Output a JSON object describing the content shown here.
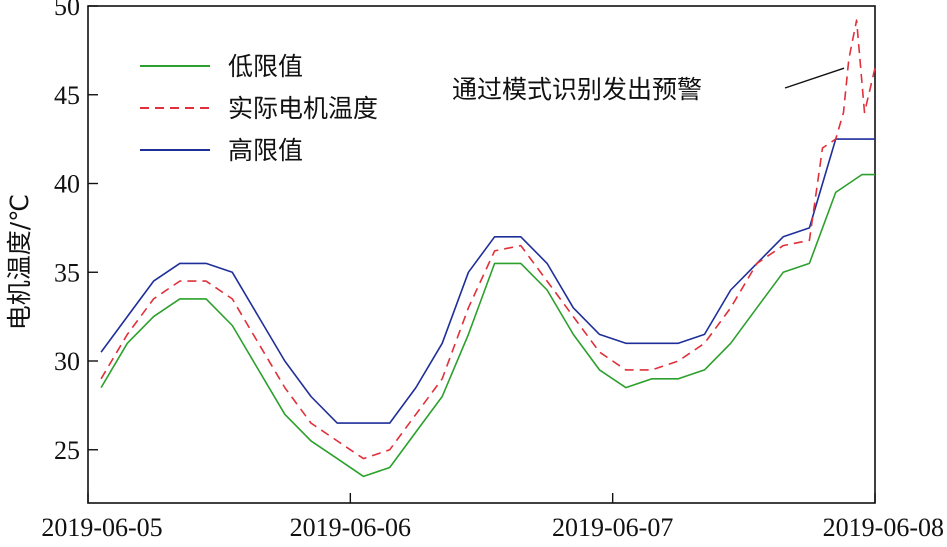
{
  "chart_data": {
    "type": "line",
    "ylabel": "电机温度/℃",
    "xlabel": "",
    "ylim": [
      22,
      50
    ],
    "xlim": [
      0,
      3
    ],
    "yticks": [
      25,
      30,
      35,
      40,
      45,
      50
    ],
    "xticks": [
      {
        "value": 0,
        "label": "2019-06-05"
      },
      {
        "value": 1,
        "label": "2019-06-06"
      },
      {
        "value": 2,
        "label": "2019-06-07"
      },
      {
        "value": 3,
        "label": "2019-06-08"
      }
    ],
    "annotation": {
      "text": "通过模式识别发出预警",
      "x": 2.92,
      "y": 49.2
    },
    "legend": {
      "position": "top-left"
    },
    "series": [
      {
        "name": "低限值",
        "color": "#2ca02c",
        "dash": "solid",
        "x": [
          0.05,
          0.15,
          0.25,
          0.35,
          0.45,
          0.55,
          0.65,
          0.75,
          0.85,
          0.95,
          1.05,
          1.15,
          1.25,
          1.35,
          1.45,
          1.55,
          1.65,
          1.75,
          1.85,
          1.95,
          2.05,
          2.15,
          2.25,
          2.35,
          2.45,
          2.55,
          2.65,
          2.75,
          2.85,
          2.9,
          2.95,
          3.0
        ],
        "values": [
          28.5,
          31,
          32.5,
          33.5,
          33.5,
          32,
          29.5,
          27,
          25.5,
          24.5,
          23.5,
          24,
          26,
          28,
          31.5,
          35.5,
          35.5,
          34,
          31.5,
          29.5,
          28.5,
          29,
          29,
          29.5,
          31,
          33,
          35,
          35.5,
          39.5,
          40,
          40.5,
          40.5
        ]
      },
      {
        "name": "实际电机温度",
        "color": "#e0303a",
        "dash": "9,6",
        "x": [
          0.05,
          0.15,
          0.25,
          0.35,
          0.45,
          0.55,
          0.65,
          0.75,
          0.85,
          0.95,
          1.05,
          1.15,
          1.25,
          1.35,
          1.45,
          1.55,
          1.65,
          1.75,
          1.85,
          1.95,
          2.05,
          2.15,
          2.25,
          2.35,
          2.45,
          2.55,
          2.65,
          2.75,
          2.8,
          2.85,
          2.88,
          2.9,
          2.93,
          2.96,
          3.0
        ],
        "values": [
          29,
          31.5,
          33.5,
          34.5,
          34.5,
          33.5,
          31,
          28.5,
          26.5,
          25.5,
          24.5,
          25,
          27,
          29,
          33,
          36.2,
          36.5,
          34.5,
          32.5,
          30.5,
          29.5,
          29.5,
          30,
          31,
          33,
          35.5,
          36.5,
          36.8,
          42,
          42.5,
          44,
          47,
          49.2,
          44,
          46.5
        ]
      },
      {
        "name": "高限值",
        "color": "#1f2f9a",
        "dash": "solid",
        "x": [
          0.05,
          0.15,
          0.25,
          0.35,
          0.45,
          0.55,
          0.65,
          0.75,
          0.85,
          0.95,
          1.05,
          1.15,
          1.25,
          1.35,
          1.45,
          1.55,
          1.65,
          1.75,
          1.85,
          1.95,
          2.05,
          2.15,
          2.25,
          2.35,
          2.45,
          2.55,
          2.65,
          2.75,
          2.85,
          2.9,
          2.95,
          3.0
        ],
        "values": [
          30.5,
          32.5,
          34.5,
          35.5,
          35.5,
          35,
          32.5,
          30,
          28,
          26.5,
          26.5,
          26.5,
          28.5,
          31,
          35,
          37,
          37,
          35.5,
          33,
          31.5,
          31,
          31,
          31,
          31.5,
          34,
          35.5,
          37,
          37.5,
          42.5,
          42.5,
          42.5,
          42.5
        ]
      }
    ]
  }
}
